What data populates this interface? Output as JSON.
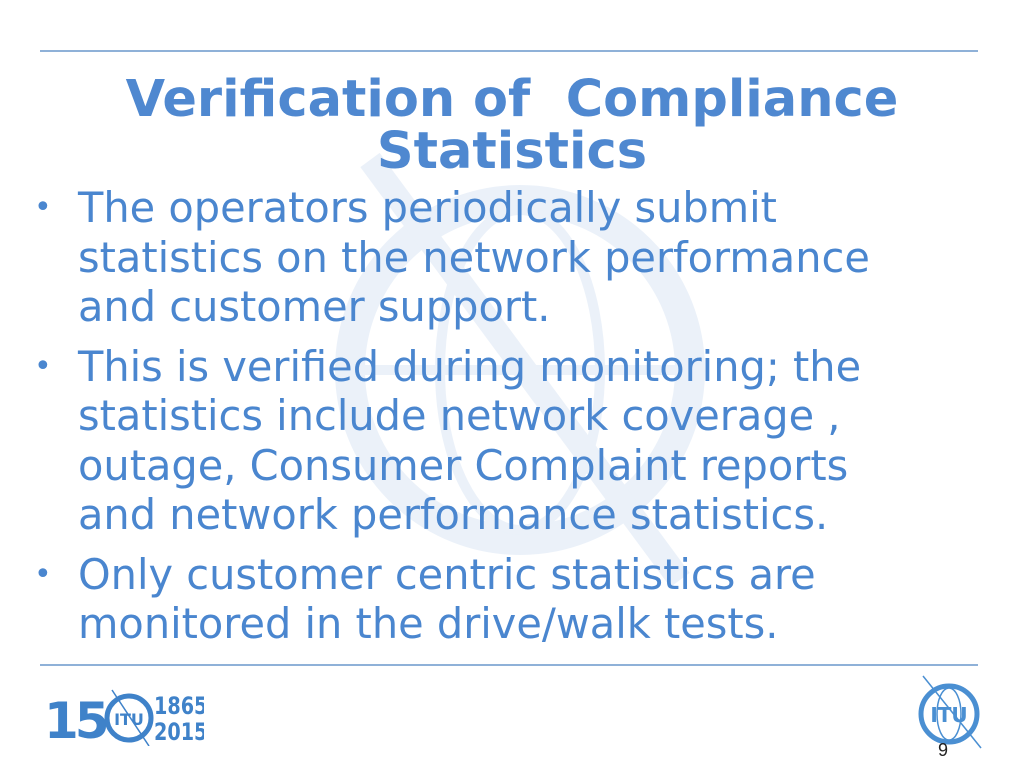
{
  "slide": {
    "title_lines": [
      "Verification of  Compliance",
      "Statistics"
    ],
    "bullets": [
      {
        "lines": [
          "The operators periodically submit",
          "statistics on the network performance",
          "and customer support."
        ]
      },
      {
        "lines": [
          "This is verified during monitoring; the",
          "statistics include network coverage ,",
          "outage, Consumer Complaint reports",
          "and network performance statistics."
        ]
      },
      {
        "lines": [
          "Only customer centric statistics are",
          "monitored in the drive/walk tests."
        ]
      }
    ],
    "page_number": "9"
  },
  "footer": {
    "anniversary_logo": {
      "number": "150",
      "emblem": "ITU",
      "years": [
        "1865",
        "2015"
      ]
    },
    "itu_logo": "ITU"
  },
  "colors": {
    "accent": "#4f88d0",
    "body_text": "#4a86cf",
    "rule": "#8fb1d8"
  },
  "icons": [
    "itu-globe-watermark",
    "itu-150-logo",
    "itu-logo"
  ]
}
